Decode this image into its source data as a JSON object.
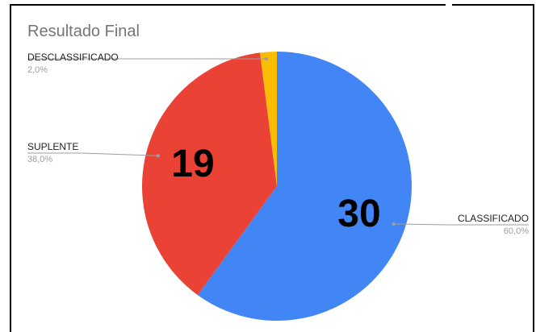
{
  "chart_data": {
    "type": "pie",
    "title": "Resultado Final",
    "slices": [
      {
        "label": "CLASSIFICADO",
        "value": 30,
        "percent": "60,0%",
        "color": "#4285f4"
      },
      {
        "label": "SUPLENTE",
        "value": 19,
        "percent": "38,0%",
        "color": "#ea4335"
      },
      {
        "label": "DESCLASSIFICADO",
        "value": 1,
        "percent": "2,0%",
        "color": "#fbbc04"
      }
    ],
    "data_labels": [
      "30",
      "19"
    ]
  }
}
